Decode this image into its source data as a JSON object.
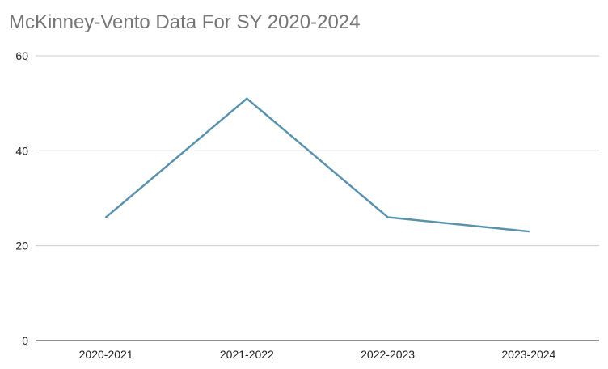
{
  "chart_data": {
    "type": "line",
    "title": "McKinney-Vento Data For SY 2020-2024",
    "xlabel": "",
    "ylabel": "",
    "categories": [
      "2020-2021",
      "2021-2022",
      "2022-2023",
      "2023-2024"
    ],
    "series": [
      {
        "values": [
          26,
          51,
          26,
          23
        ]
      }
    ],
    "ylim": [
      0,
      60
    ],
    "yticks": [
      "0",
      "20",
      "40",
      "60"
    ],
    "grid": true,
    "legend": "none",
    "colors": {
      "line": "#5b92ab",
      "grid": "#cccccc",
      "axis": "#222222",
      "title": "#757575"
    }
  }
}
